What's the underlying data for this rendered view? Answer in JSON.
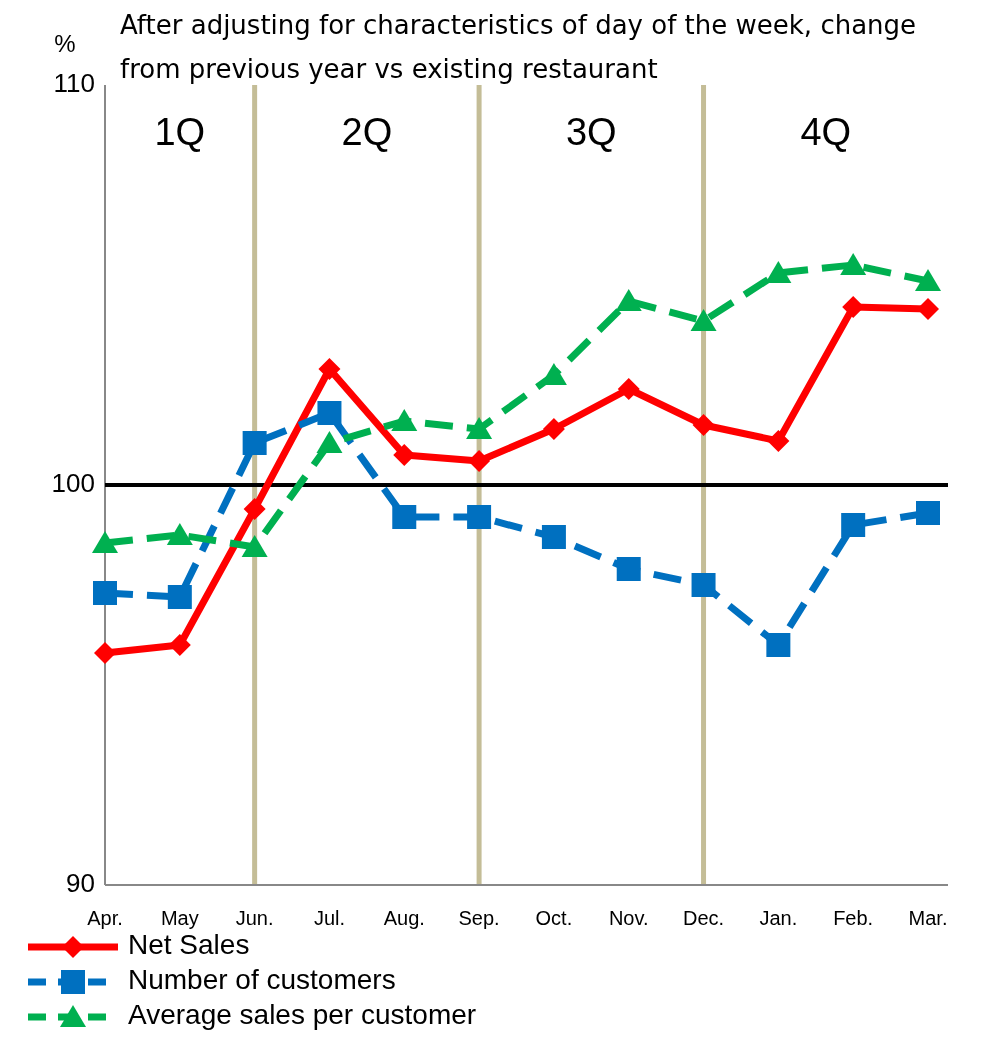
{
  "chart_data": {
    "type": "line",
    "title": "After adjusting for characteristics of day of the week, change from previous year vs existing restaurant",
    "ylabel": "%",
    "categories": [
      "Apr.",
      "May",
      "Jun.",
      "Jul.",
      "Aug.",
      "Sep.",
      "Oct.",
      "Nov.",
      "Dec.",
      "Jan.",
      "Feb.",
      "Mar."
    ],
    "series": [
      {
        "name": "Net Sales",
        "color": "#ff0000",
        "marker": "diamond",
        "line_style": "solid",
        "values": [
          95.8,
          96.0,
          99.4,
          102.9,
          100.75,
          100.6,
          101.4,
          102.4,
          101.5,
          101.1,
          104.45,
          104.4
        ]
      },
      {
        "name": "Number of customers",
        "color": "#0070c0",
        "marker": "square",
        "line_style": "dashed",
        "values": [
          97.3,
          97.2,
          101.05,
          101.8,
          99.2,
          99.2,
          98.7,
          97.9,
          97.5,
          96.0,
          99.0,
          99.3
        ]
      },
      {
        "name": "Average sales per customer",
        "color": "#00b050",
        "marker": "triangle",
        "line_style": "dashed",
        "values": [
          98.55,
          98.75,
          98.45,
          101.05,
          101.6,
          101.4,
          102.75,
          104.6,
          104.1,
          105.3,
          105.5,
          105.1
        ]
      }
    ],
    "ylim": [
      90,
      110
    ],
    "yticks": [
      90,
      100,
      110
    ],
    "grid": false,
    "legend": "bottom",
    "ref_lines": [
      {
        "axis": "y",
        "value": 100,
        "color": "#000000"
      },
      {
        "axis": "x",
        "value": "Jun.",
        "color": "#c4bd97"
      },
      {
        "axis": "x",
        "value": "Sep.",
        "color": "#c4bd97"
      },
      {
        "axis": "x",
        "value": "Dec.",
        "color": "#c4bd97"
      }
    ],
    "annotations": [
      "1Q",
      "2Q",
      "3Q",
      "4Q"
    ]
  }
}
